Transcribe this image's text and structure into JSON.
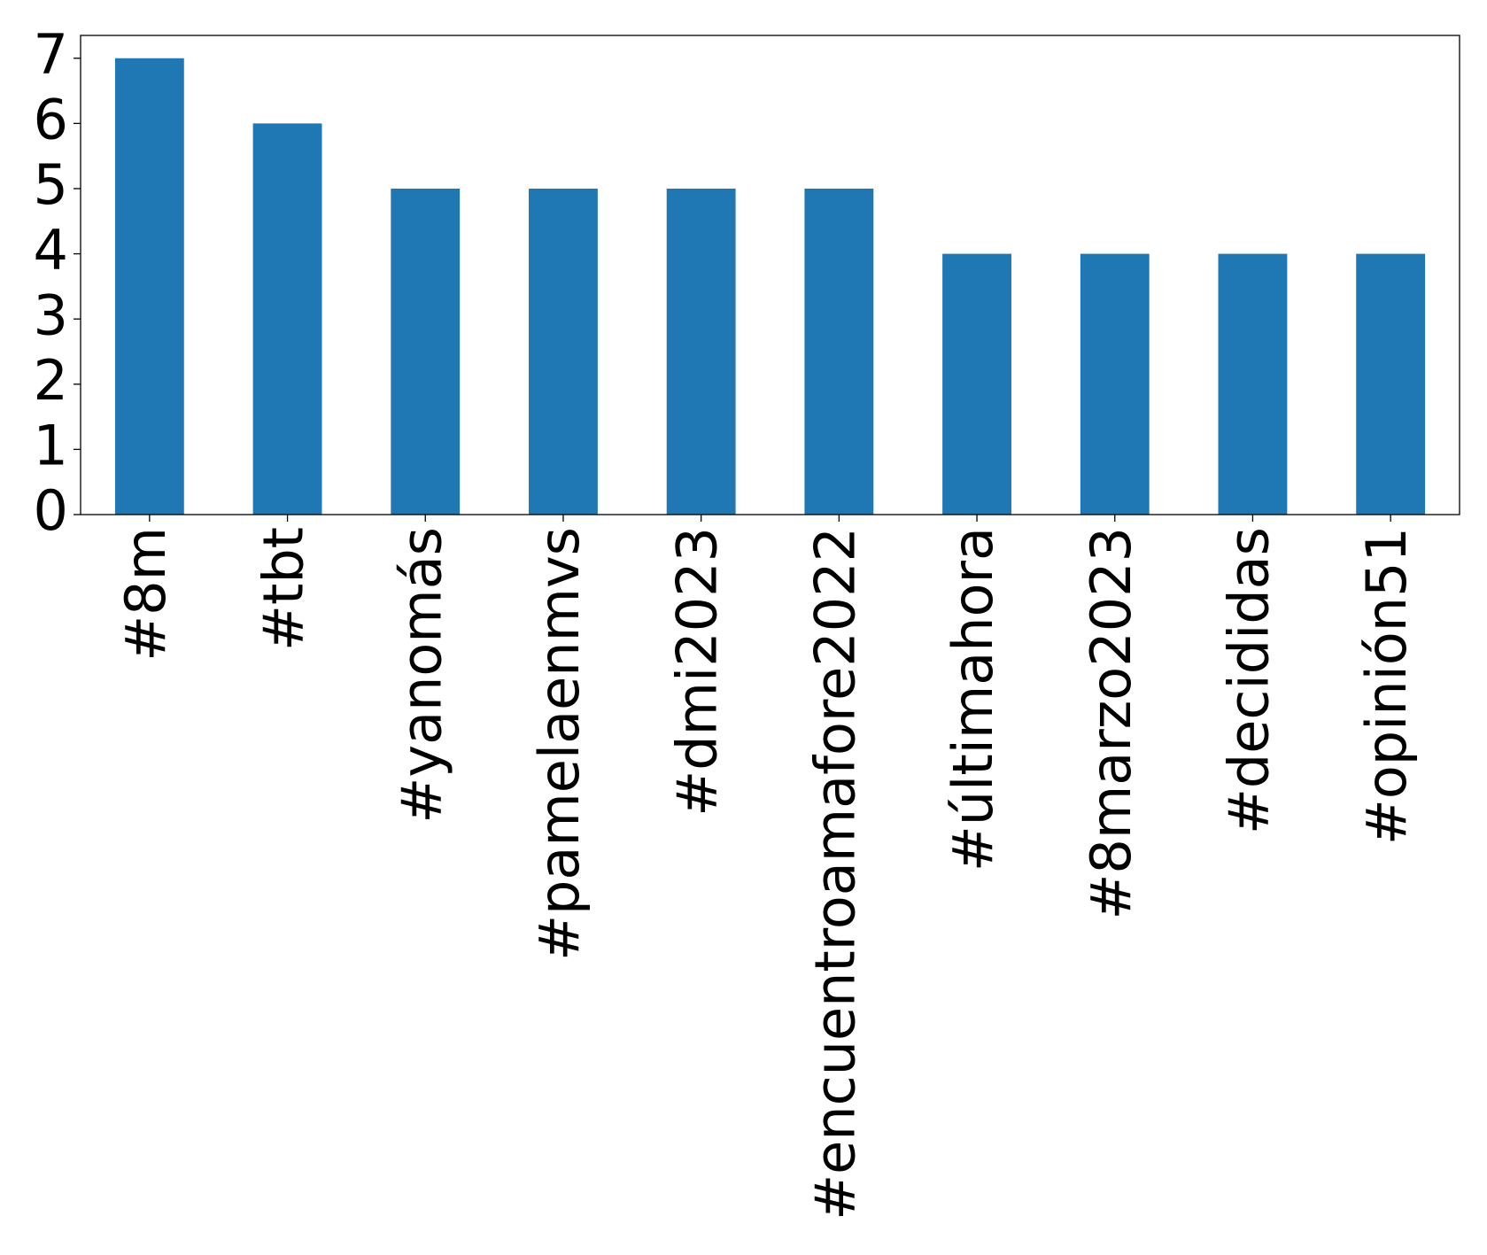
{
  "chart_data": {
    "type": "bar",
    "categories": [
      "#8m",
      "#tbt",
      "#yanomás",
      "#pamelaenmvs",
      "#dmi2023",
      "#encuentroamafore2022",
      "#últimahora",
      "#8marzo2023",
      "#decididas",
      "#opinión51"
    ],
    "values": [
      7,
      6,
      5,
      5,
      5,
      5,
      4,
      4,
      4,
      4
    ],
    "color": "#1f77b4",
    "ylim": [
      0,
      7.35
    ],
    "yticks": [
      0,
      1,
      2,
      3,
      4,
      5,
      6,
      7
    ],
    "grid": false
  }
}
